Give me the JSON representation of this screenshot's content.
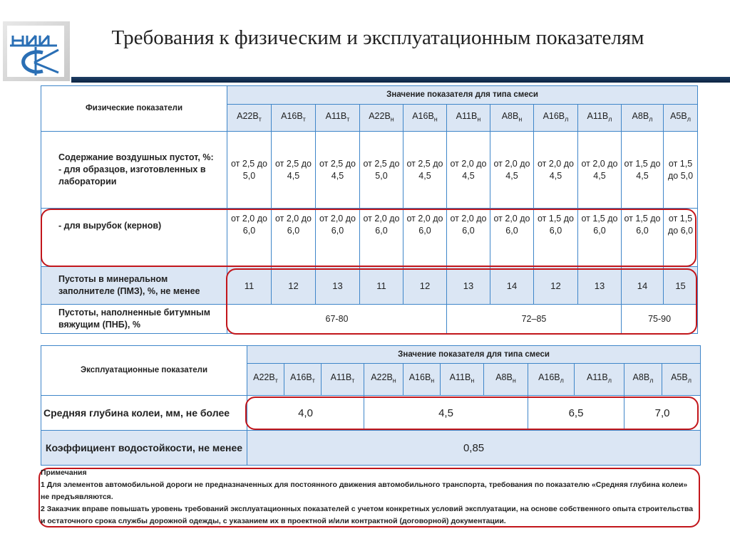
{
  "title": "Требования к физическим и эксплуатационным показателям",
  "logo_text": "НИИ СФ",
  "table1": {
    "row_header": "Физические показатели",
    "group_header": "Значение показателя для типа смеси",
    "types": [
      [
        "А22В",
        "т"
      ],
      [
        "А16В",
        "т"
      ],
      [
        "А11В",
        "т"
      ],
      [
        "А22В",
        "н"
      ],
      [
        "А16В",
        "н"
      ],
      [
        "А11В",
        "н"
      ],
      [
        "А8В",
        "н"
      ],
      [
        "А16В",
        "л"
      ],
      [
        "А11В",
        "л"
      ],
      [
        "А8В",
        "л"
      ],
      [
        "А5В",
        "л"
      ]
    ],
    "air_voids_label": "Содержание воздушных пустот, %:",
    "lab_label": "- для образцов, изготовленных в лаборатории",
    "lab_values": [
      "от 2,5 до 5,0",
      "от 2,5 до 4,5",
      "от 2,5 до 4,5",
      "от 2,5 до 5,0",
      "от 2,5 до 4,5",
      "от 2,0 до 4,5",
      "от 2,0 до 4,5",
      "от 2,0 до 4,5",
      "от 2,0 до 4,5",
      "от 1,5 до 4,5",
      "от 1,5 до 5,0"
    ],
    "core_label": "- для вырубок (кернов)",
    "core_values": [
      "от 2,0 до 6,0",
      "от 2,0 до 6,0",
      "от 2,0 до 6,0",
      "от 2,0 до 6,0",
      "от 2,0 до 6,0",
      "от 2,0 до 6,0",
      "от 2,0 до 6,0",
      "от 1,5 до 6,0",
      "от 1,5 до 6,0",
      "от 1,5 до 6,0",
      "от 1,5 до 6,0"
    ],
    "vma_label": "Пустоты в минеральном заполнителе (ПМЗ), %, не менее",
    "vma_values": [
      "11",
      "12",
      "13",
      "11",
      "12",
      "13",
      "14",
      "12",
      "13",
      "14",
      "15"
    ],
    "vfb_label": "Пустоты, наполненные битумным вяжущим (ПНБ), %",
    "vfb_values": [
      "67-80",
      "72–85",
      "75-90"
    ]
  },
  "table2": {
    "row_header": "Эксплуатационные показатели",
    "group_header": "Значение показателя для типа смеси",
    "types": [
      [
        "А22В",
        "т"
      ],
      [
        "А16В",
        "т"
      ],
      [
        "А11В",
        "т"
      ],
      [
        "А22В",
        "н"
      ],
      [
        "А16В",
        "н"
      ],
      [
        "А11В",
        "н"
      ],
      [
        "А8В",
        "н"
      ],
      [
        "А16В",
        "л"
      ],
      [
        "А11В",
        "л"
      ],
      [
        "А8В",
        "л"
      ],
      [
        "А5В",
        "л"
      ]
    ],
    "rut_label": "Средняя глубина колеи, мм, не более",
    "rut_values": [
      "4,0",
      "4,5",
      "6,5",
      "7,0"
    ],
    "water_label": "Коэффициент водостойкости, не менее",
    "water_value": "0,85"
  },
  "notes": {
    "heading": "Примечания",
    "items": [
      "1 Для элементов автомобильной дороги не предназначенных для постоянного движения автомобильного транспорта, требования по показателю «Средняя глубина колеи» не предъявляются.",
      "2 Заказчик вправе повышать уровень требований эксплуатационных показателей с учетом конкретных условий эксплуатации, на основе собственного опыта строительства и остаточного срока службы дорожной одежды, с указанием их в проектной и/или контрактной (договорной) документации."
    ]
  }
}
